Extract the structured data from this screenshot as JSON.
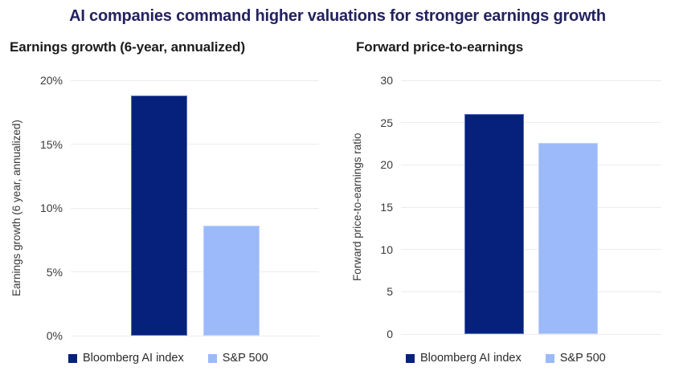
{
  "page": {
    "title": "AI companies command higher valuations for stronger earnings growth"
  },
  "colors": {
    "navy": "#06217c",
    "light_blue": "#9cbafa",
    "title_text": "#23225f",
    "gridline": "#ececec"
  },
  "chart_data": [
    {
      "type": "bar",
      "title": "Earnings growth (6-year, annualized)",
      "ylabel": "Earnings growth (6 year, annualized)",
      "xlabel": "",
      "categories": [
        "Bloomberg AI index",
        "S&P 500"
      ],
      "values": [
        18.8,
        8.6
      ],
      "value_unit": "percent",
      "ylim": [
        0,
        20
      ],
      "yticks": [
        0,
        5,
        10,
        15,
        20
      ],
      "ytick_labels": [
        "0%",
        "5%",
        "10%",
        "15%",
        "20%"
      ],
      "grid": true,
      "legend_position": "bottom",
      "legend": [
        {
          "label": "Bloomberg AI index",
          "color": "#06217c"
        },
        {
          "label": "S&P 500",
          "color": "#9cbafa"
        }
      ]
    },
    {
      "type": "bar",
      "title": "Forward price-to-earnings",
      "ylabel": "Forward price-to-earnings ratio",
      "xlabel": "",
      "categories": [
        "Bloomberg AI index",
        "S&P 500"
      ],
      "values": [
        26.0,
        22.6
      ],
      "value_unit": "ratio",
      "ylim": [
        0,
        30
      ],
      "yticks": [
        0,
        5,
        10,
        15,
        20,
        25,
        30
      ],
      "ytick_labels": [
        "0",
        "5",
        "10",
        "15",
        "20",
        "25",
        "30"
      ],
      "grid": true,
      "legend_position": "bottom",
      "legend": [
        {
          "label": "Bloomberg AI index",
          "color": "#06217c"
        },
        {
          "label": "S&P 500",
          "color": "#9cbafa"
        }
      ]
    }
  ]
}
